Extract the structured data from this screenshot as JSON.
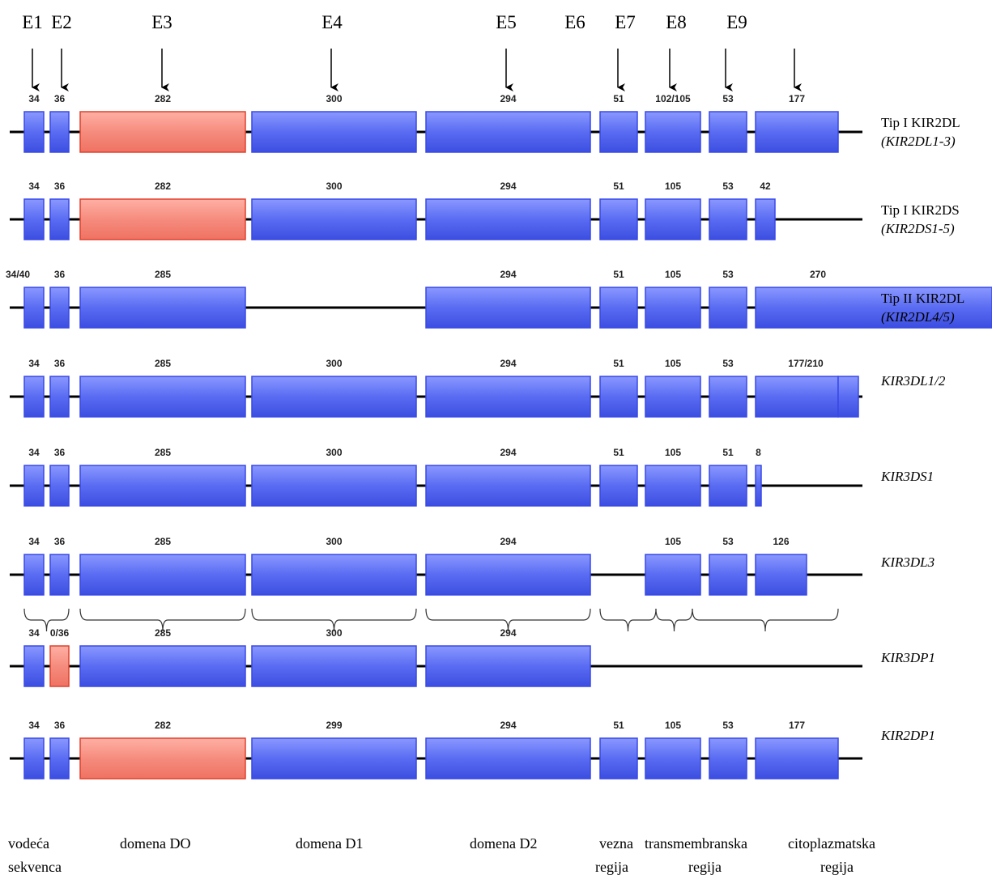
{
  "header": {
    "exon_labels": [
      "E1",
      "E2",
      "E3",
      "E4",
      "E5",
      "E6",
      "E7",
      "E8",
      "E9"
    ]
  },
  "rows": [
    {
      "name": [
        "Tip I KIR2DL",
        "(KIR2DL1-3)"
      ],
      "exons": [
        "34",
        "36",
        "282",
        "300",
        "294",
        "51",
        "102/105",
        "53",
        "177"
      ]
    },
    {
      "name": [
        "Tip I KIR2DS",
        "(KIR2DS1-5)"
      ],
      "exons": [
        "34",
        "36",
        "282",
        "300",
        "294",
        "51",
        "105",
        "53",
        "42"
      ]
    },
    {
      "name": [
        "Tip II KIR2DL",
        "(KIR2DL4/5)"
      ],
      "exons": [
        "34/40",
        "36",
        "285",
        "294",
        "51",
        "105",
        "53",
        "270"
      ]
    },
    {
      "name": [
        "KIR3DL1/2"
      ],
      "exons": [
        "34",
        "36",
        "285",
        "300",
        "294",
        "51",
        "105",
        "53",
        "177/210"
      ]
    },
    {
      "name": [
        "KIR3DS1"
      ],
      "exons": [
        "34",
        "36",
        "285",
        "300",
        "294",
        "51",
        "105",
        "51",
        "8"
      ]
    },
    {
      "name": [
        "KIR3DL3"
      ],
      "exons": [
        "34",
        "36",
        "285",
        "300",
        "294",
        "105",
        "53",
        "126"
      ]
    },
    {
      "name": [
        "KIR3DP1"
      ],
      "exons": [
        "34",
        "0/36",
        "285",
        "300",
        "294"
      ]
    },
    {
      "name": [
        "KIR2DP1"
      ],
      "exons": [
        "34",
        "36",
        "282",
        "299",
        "294",
        "51",
        "105",
        "53",
        "177"
      ]
    }
  ],
  "regions": [
    [
      "vodeća",
      "sekvenca"
    ],
    [
      "domena DO"
    ],
    [
      "domena D1"
    ],
    [
      "domena D2"
    ],
    [
      "vezna",
      "regija"
    ],
    [
      "transmembranska",
      "regija"
    ],
    [
      "citoplazmatska",
      "regija"
    ]
  ]
}
